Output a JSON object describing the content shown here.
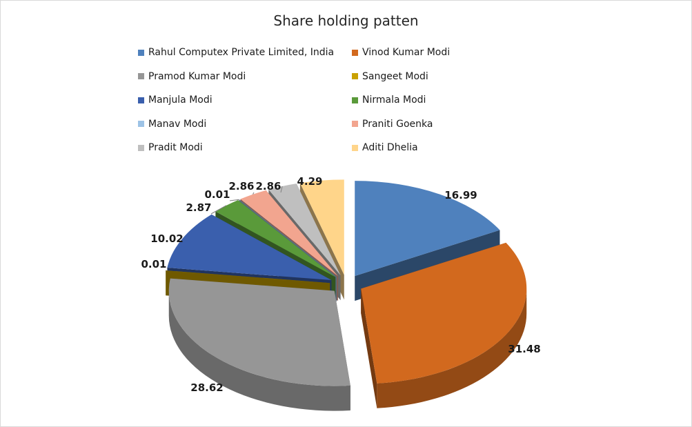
{
  "chart_data": {
    "type": "pie",
    "title": "Share holding patten",
    "legend_position": "top",
    "slices": [
      {
        "label": "Rahul Computex Private Limited, India",
        "value": 16.99,
        "color": "#4f81bd"
      },
      {
        "label": "Vinod Kumar Modi",
        "value": 31.48,
        "color": "#d2691e"
      },
      {
        "label": "Pramod Kumar Modi",
        "value": 28.62,
        "color": "#969696"
      },
      {
        "label": "Sangeet Modi",
        "value": 0.01,
        "color": "#c9a100"
      },
      {
        "label": "Manjula Modi",
        "value": 10.02,
        "color": "#3a5fad"
      },
      {
        "label": "Nirmala Modi",
        "value": 2.87,
        "color": "#5a9a3a"
      },
      {
        "label": "Manav Modi",
        "value": 0.01,
        "color": "#9dc3e6"
      },
      {
        "label": "Praniti Goenka",
        "value": 2.86,
        "color": "#f2a58f"
      },
      {
        "label": "Pradit Modi",
        "value": 2.86,
        "color": "#bfbfbf"
      },
      {
        "label": "Aditi Dhelia",
        "value": 4.29,
        "color": "#ffd58a"
      }
    ]
  }
}
